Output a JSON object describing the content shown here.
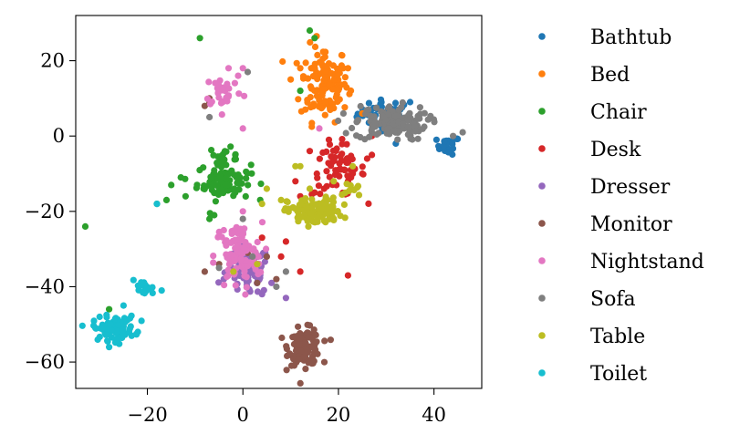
{
  "chart_data": {
    "type": "scatter",
    "title": "",
    "xlabel": "",
    "ylabel": "",
    "xlim": [
      -35,
      50
    ],
    "ylim": [
      -67,
      32
    ],
    "xticks": [
      -20,
      0,
      20,
      40
    ],
    "yticks": [
      20,
      0,
      -20,
      -40,
      -60
    ],
    "xtick_labels": [
      "−20",
      "0",
      "20",
      "40"
    ],
    "ytick_labels": [
      "20",
      "0",
      "−20",
      "−40",
      "−60"
    ],
    "grid": false,
    "legend_position": "right, outside plot",
    "series": [
      {
        "name": "Bathtub",
        "color": "#1f77b4",
        "clusters": [
          {
            "cx": 30,
            "cy": 6,
            "sx": 3.0,
            "sy": 1.8,
            "n": 40
          },
          {
            "cx": 43,
            "cy": -2.5,
            "sx": 1.2,
            "sy": 1.2,
            "n": 22
          }
        ],
        "points": [
          [
            35,
            9
          ],
          [
            29,
            9
          ],
          [
            24,
            4
          ],
          [
            32,
            -2
          ]
        ]
      },
      {
        "name": "Bed",
        "color": "#ff7f0e",
        "clusters": [
          {
            "cx": 17,
            "cy": 14,
            "sx": 2.5,
            "sy": 5.0,
            "n": 130
          }
        ],
        "points": [
          [
            10,
            15
          ],
          [
            12,
            18
          ],
          [
            21,
            18
          ],
          [
            24,
            4
          ],
          [
            25,
            6
          ],
          [
            22,
            18
          ]
        ]
      },
      {
        "name": "Chair",
        "color": "#2ca02c",
        "clusters": [
          {
            "cx": -4,
            "cy": -12,
            "sx": 2.8,
            "sy": 2.5,
            "n": 85
          },
          {
            "cx": -4,
            "cy": -5,
            "sx": 1.5,
            "sy": 1.0,
            "n": 15
          }
        ],
        "points": [
          [
            -33,
            -24
          ],
          [
            -9,
            26
          ],
          [
            14,
            28
          ],
          [
            15,
            26
          ],
          [
            -18,
            -18
          ],
          [
            -16,
            -17
          ],
          [
            -7,
            -22
          ],
          [
            -6,
            -21
          ],
          [
            -12,
            -16
          ],
          [
            -28,
            -46
          ],
          [
            12,
            12
          ],
          [
            -15,
            -13
          ],
          [
            -13,
            -11
          ]
        ]
      },
      {
        "name": "Desk",
        "color": "#d62728",
        "clusters": [
          {
            "cx": 20,
            "cy": -9,
            "sx": 2.8,
            "sy": 3.5,
            "n": 60
          }
        ],
        "points": [
          [
            12,
            -16
          ],
          [
            15,
            -15
          ],
          [
            17,
            -14
          ],
          [
            14,
            -4
          ],
          [
            26,
            -6
          ],
          [
            27,
            -5
          ],
          [
            9,
            -28
          ],
          [
            8,
            -32
          ],
          [
            12,
            -36
          ],
          [
            4,
            -27
          ],
          [
            22,
            -37
          ],
          [
            3,
            -32
          ],
          [
            25,
            -10
          ],
          [
            22,
            -12
          ],
          [
            18,
            -1
          ],
          [
            27,
            0
          ],
          [
            11,
            -12
          ]
        ]
      },
      {
        "name": "Dresser",
        "color": "#9467bd",
        "clusters": [
          {
            "cx": 1,
            "cy": -36,
            "sx": 2.3,
            "sy": 3.2,
            "n": 80
          }
        ],
        "points": [
          [
            9,
            -43
          ],
          [
            6,
            -39
          ],
          [
            4,
            -42
          ],
          [
            -4,
            -38
          ]
        ]
      },
      {
        "name": "Monitor",
        "color": "#8c564b",
        "clusters": [
          {
            "cx": 13,
            "cy": -56,
            "sx": 1.7,
            "sy": 2.4,
            "n": 110
          }
        ],
        "points": [
          [
            -8,
            8
          ],
          [
            -7,
            9
          ],
          [
            -8,
            -36
          ],
          [
            -5,
            -34
          ],
          [
            1,
            -31
          ],
          [
            5,
            -32
          ],
          [
            7,
            -38
          ],
          [
            3,
            -39
          ],
          [
            -7,
            10
          ]
        ]
      },
      {
        "name": "Nightstand",
        "color": "#e377c2",
        "clusters": [
          {
            "cx": -1,
            "cy": -32,
            "sx": 2.5,
            "sy": 4.5,
            "n": 90
          },
          {
            "cx": -4,
            "cy": 12,
            "sx": 2.0,
            "sy": 2.2,
            "n": 30
          }
        ],
        "points": [
          [
            0,
            2
          ],
          [
            16,
            2
          ],
          [
            -3,
            18
          ],
          [
            0,
            -20
          ],
          [
            -4,
            -25
          ],
          [
            0,
            18
          ],
          [
            -1,
            16
          ]
        ]
      },
      {
        "name": "Sofa",
        "color": "#7f7f7f",
        "clusters": [
          {
            "cx": 31,
            "cy": 3.5,
            "sx": 3.8,
            "sy": 2.3,
            "n": 130
          }
        ],
        "points": [
          [
            46,
            1
          ],
          [
            44,
            0
          ],
          [
            -7,
            5
          ],
          [
            1,
            17
          ],
          [
            -5,
            -35
          ],
          [
            0,
            -22
          ],
          [
            9,
            -36
          ],
          [
            2,
            -32
          ],
          [
            7,
            -40
          ]
        ]
      },
      {
        "name": "Table",
        "color": "#bcbd22",
        "clusters": [
          {
            "cx": 15,
            "cy": -20,
            "sx": 2.8,
            "sy": 1.8,
            "n": 120
          },
          {
            "cx": 23,
            "cy": -14,
            "sx": 1.0,
            "sy": 1.2,
            "n": 10
          }
        ],
        "points": [
          [
            11,
            -8
          ],
          [
            12,
            -8
          ],
          [
            5,
            -14
          ],
          [
            4,
            -18
          ],
          [
            8,
            -17
          ],
          [
            -2,
            -36
          ],
          [
            23,
            -8
          ],
          [
            3,
            -34
          ],
          [
            14,
            -14
          ],
          [
            19,
            -12
          ]
        ]
      },
      {
        "name": "Toilet",
        "color": "#17becf",
        "clusters": [
          {
            "cx": -27,
            "cy": -51,
            "sx": 2.2,
            "sy": 1.6,
            "n": 85
          },
          {
            "cx": -21,
            "cy": -40.5,
            "sx": 1.2,
            "sy": 1.0,
            "n": 16
          }
        ],
        "points": [
          [
            -18,
            -18
          ],
          [
            -25,
            -45
          ],
          [
            -30,
            -48
          ],
          [
            -22,
            -52
          ],
          [
            -17,
            -41
          ]
        ]
      }
    ]
  }
}
